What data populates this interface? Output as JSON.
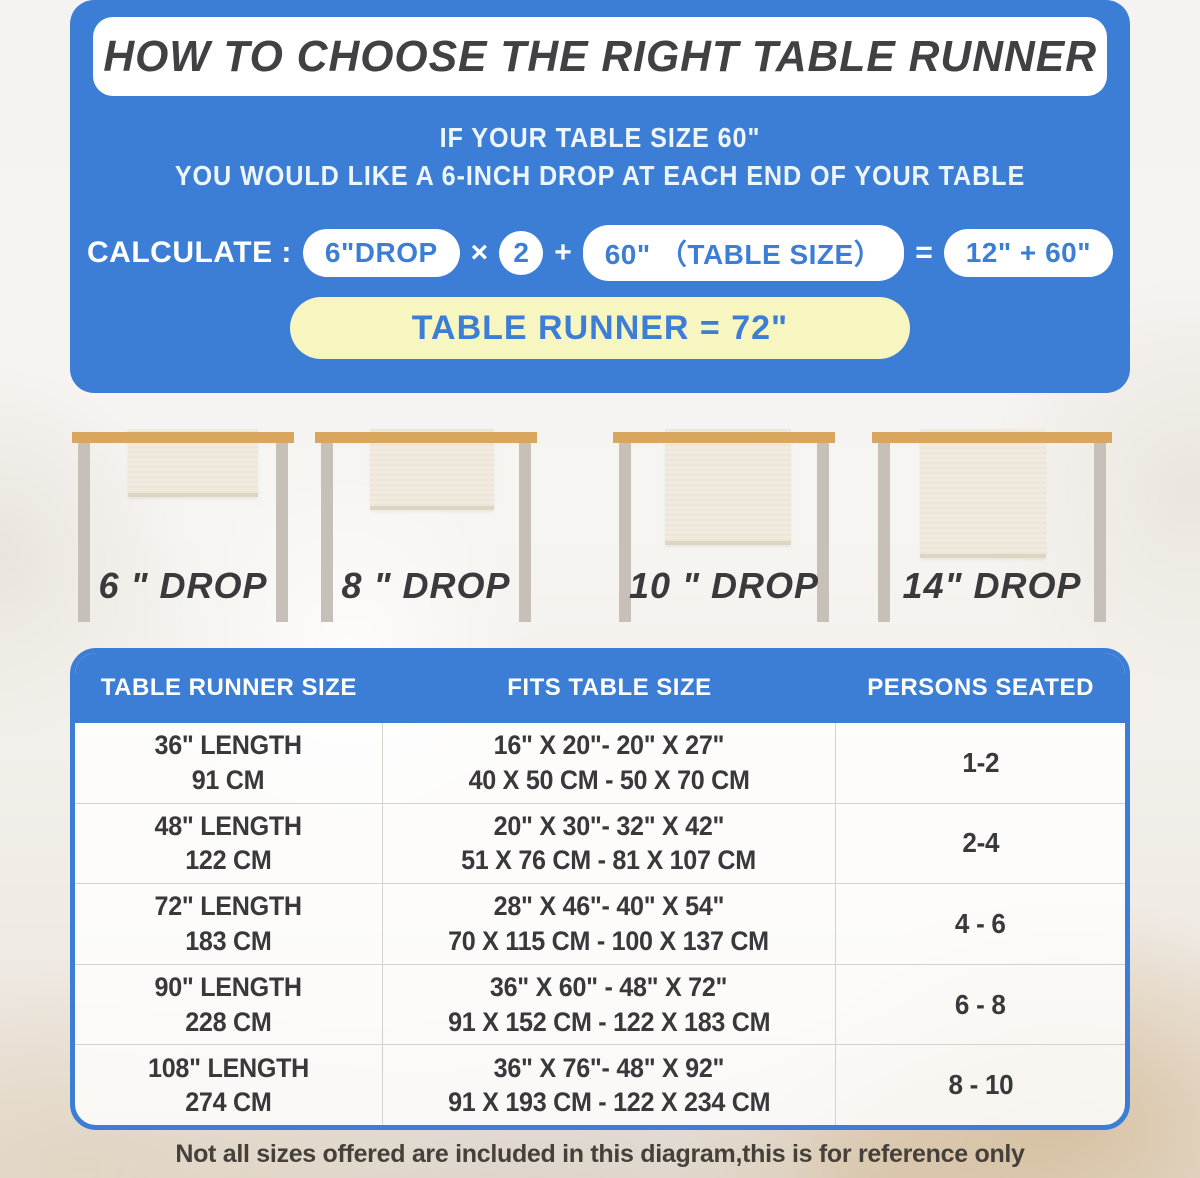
{
  "header": {
    "title": "HOW TO CHOOSE THE RIGHT TABLE RUNNER",
    "subtitle1": "IF YOUR TABLE SIZE 60\"",
    "subtitle2": "YOU WOULD LIKE A 6-INCH DROP AT EACH END OF YOUR TABLE"
  },
  "calc": {
    "label": "CALCULATE :",
    "drop": "6\"DROP",
    "times": "×",
    "multiplier": "2",
    "plus": "+",
    "table_size": "60\" （TABLE SIZE）",
    "equals": "=",
    "partial": "12\" + 60\"",
    "result": "TABLE RUNNER = 72\""
  },
  "drops": [
    {
      "label": "6 \" DROP"
    },
    {
      "label": "8 \" DROP"
    },
    {
      "label": "10 \" DROP"
    },
    {
      "label": "14\" DROP"
    }
  ],
  "size_table": {
    "headers": [
      "TABLE RUNNER SIZE",
      "FITS TABLE SIZE",
      "PERSONS SEATED"
    ],
    "rows": [
      {
        "size_in": "36\" LENGTH",
        "size_cm": "91 CM",
        "fits_in": "16\" X 20\"- 20\" X 27\"",
        "fits_cm": "40 X 50 CM - 50 X 70 CM",
        "persons": "1-2"
      },
      {
        "size_in": "48\" LENGTH",
        "size_cm": "122 CM",
        "fits_in": "20\" X 30\"- 32\" X 42\"",
        "fits_cm": "51 X 76 CM - 81 X 107 CM",
        "persons": "2-4"
      },
      {
        "size_in": "72\" LENGTH",
        "size_cm": "183 CM",
        "fits_in": "28\" X 46\"- 40\" X 54\"",
        "fits_cm": "70 X 115 CM - 100 X 137 CM",
        "persons": "4 - 6"
      },
      {
        "size_in": "90\" LENGTH",
        "size_cm": "228 CM",
        "fits_in": "36\" X 60\" - 48\" X 72\"",
        "fits_cm": "91 X 152 CM - 122 X 183 CM",
        "persons": "6 - 8"
      },
      {
        "size_in": "108\" LENGTH",
        "size_cm": "274 CM",
        "fits_in": "36\" X 76\"- 48\" X 92\"",
        "fits_cm": "91 X 193 CM - 122 X 234 CM",
        "persons": "8 - 10"
      }
    ]
  },
  "footer": {
    "note": "Not all sizes offered are included in this diagram,this is for reference only"
  },
  "colors": {
    "accent_blue": "#3c7ed6",
    "result_yellow": "#f8f6c0",
    "tabletop_wood": "#d9a65f",
    "leg_gray": "#c6c0b8",
    "runner_cream": "#f0ebde",
    "text_dark": "#39393b"
  }
}
